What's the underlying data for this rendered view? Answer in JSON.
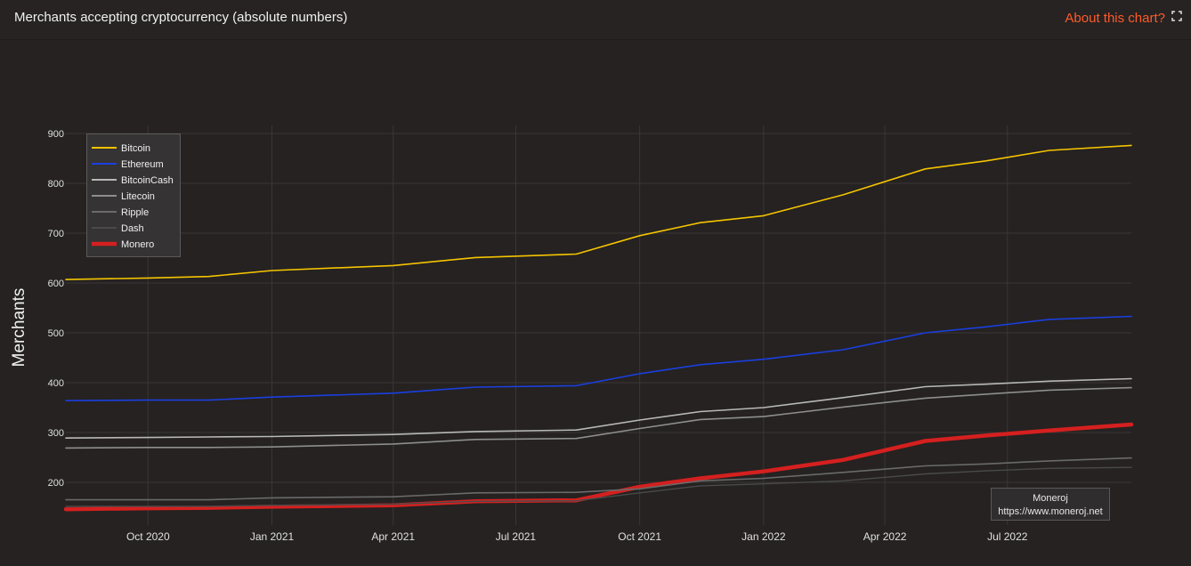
{
  "header": {
    "title": "Merchants accepting cryptocurrency (absolute numbers)",
    "about_label": "About this chart?"
  },
  "colors": {
    "background": "#252221",
    "grid": "#3a3736",
    "accent": "#ff5a2a"
  },
  "watermark": {
    "line1": "Moneroj",
    "line2": "https://www.moneroj.net"
  },
  "chart_data": {
    "type": "line",
    "title": "Merchants accepting cryptocurrency (absolute numbers)",
    "xlabel": "",
    "ylabel": "Merchants",
    "ylim": [
      130,
      920
    ],
    "yticks": [
      200,
      300,
      400,
      500,
      600,
      700,
      800,
      900
    ],
    "x": [
      "2020-08-01",
      "2020-10-01",
      "2020-11-15",
      "2021-01-01",
      "2021-04-01",
      "2021-06-01",
      "2021-08-15",
      "2021-10-01",
      "2021-11-15",
      "2022-01-01",
      "2022-03-01",
      "2022-05-01",
      "2022-06-15",
      "2022-08-01",
      "2022-10-01"
    ],
    "xticks": [
      {
        "label": "Oct 2020",
        "date": "2020-10-01"
      },
      {
        "label": "Jan 2021",
        "date": "2021-01-01"
      },
      {
        "label": "Apr 2021",
        "date": "2021-04-01"
      },
      {
        "label": "Jul 2021",
        "date": "2021-07-01"
      },
      {
        "label": "Oct 2021",
        "date": "2021-10-01"
      },
      {
        "label": "Jan 2022",
        "date": "2022-01-01"
      },
      {
        "label": "Apr 2022",
        "date": "2022-04-01"
      },
      {
        "label": "Jul 2022",
        "date": "2022-07-01"
      }
    ],
    "xrange": [
      "2020-08-01",
      "2022-10-01"
    ],
    "legend_position": "top-left",
    "grid": true,
    "series": [
      {
        "name": "Bitcoin",
        "color": "#f5c400",
        "width": 1.6,
        "values": [
          607,
          610,
          613,
          625,
          635,
          651,
          658,
          695,
          721,
          735,
          777,
          829,
          845,
          866,
          876
        ]
      },
      {
        "name": "Ethereum",
        "color": "#1a3fe0",
        "width": 1.6,
        "values": [
          364,
          365,
          365,
          371,
          379,
          391,
          394,
          418,
          436,
          447,
          466,
          500,
          512,
          527,
          533
        ]
      },
      {
        "name": "BitcoinCash",
        "color": "#b8b8b8",
        "width": 1.6,
        "values": [
          289,
          290,
          291,
          292,
          296,
          302,
          305,
          325,
          342,
          350,
          370,
          392,
          397,
          403,
          408
        ]
      },
      {
        "name": "Litecoin",
        "color": "#8e8e8e",
        "width": 1.6,
        "values": [
          269,
          270,
          270,
          271,
          277,
          286,
          288,
          308,
          326,
          332,
          351,
          369,
          377,
          385,
          390
        ]
      },
      {
        "name": "Ripple",
        "color": "#6a6a6a",
        "width": 1.6,
        "values": [
          165,
          165,
          165,
          169,
          171,
          179,
          180,
          187,
          203,
          208,
          220,
          233,
          237,
          243,
          249
        ]
      },
      {
        "name": "Dash",
        "color": "#4a4a4a",
        "width": 1.4,
        "values": [
          152,
          152,
          152,
          154,
          156,
          162,
          163,
          179,
          193,
          197,
          203,
          217,
          223,
          228,
          230
        ]
      },
      {
        "name": "Monero",
        "color": "#d4201f",
        "width": 4.5,
        "values": [
          146,
          148,
          149,
          151,
          154,
          162,
          164,
          191,
          208,
          222,
          245,
          283,
          294,
          304,
          316
        ]
      }
    ]
  }
}
